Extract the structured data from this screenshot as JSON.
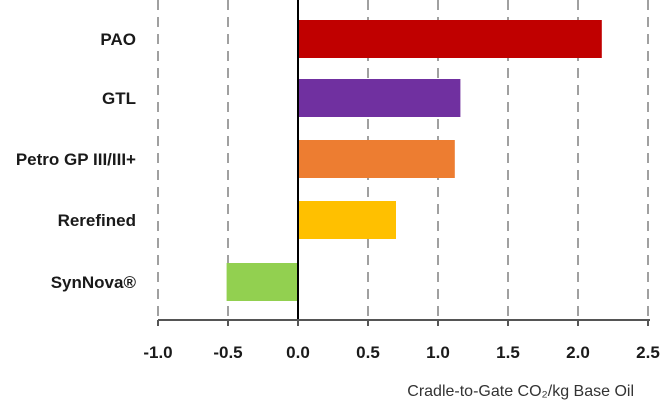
{
  "chart_data": {
    "type": "bar",
    "orientation": "horizontal",
    "categories": [
      "PAO",
      "GTL",
      "Petro GP III/III+",
      "Rerefined",
      "SynNova®"
    ],
    "values": [
      2.17,
      1.16,
      1.12,
      0.7,
      -0.51
    ],
    "colors": [
      "#c00000",
      "#7030a0",
      "#ed7d31",
      "#ffc000",
      "#92d050"
    ],
    "xlabel": "Cradle-to-Gate CO₂/kg Base Oil",
    "xlim": [
      -1.0,
      2.5
    ],
    "xticks": [
      -1.0,
      -0.5,
      0.0,
      0.5,
      1.0,
      1.5,
      2.0,
      2.5
    ],
    "xtick_labels": [
      "-1.0",
      "-0.5",
      "0.0",
      "0.5",
      "1.0",
      "1.5",
      "2.0",
      "2.5"
    ],
    "grid": "vertical dashed",
    "legend": "none"
  }
}
